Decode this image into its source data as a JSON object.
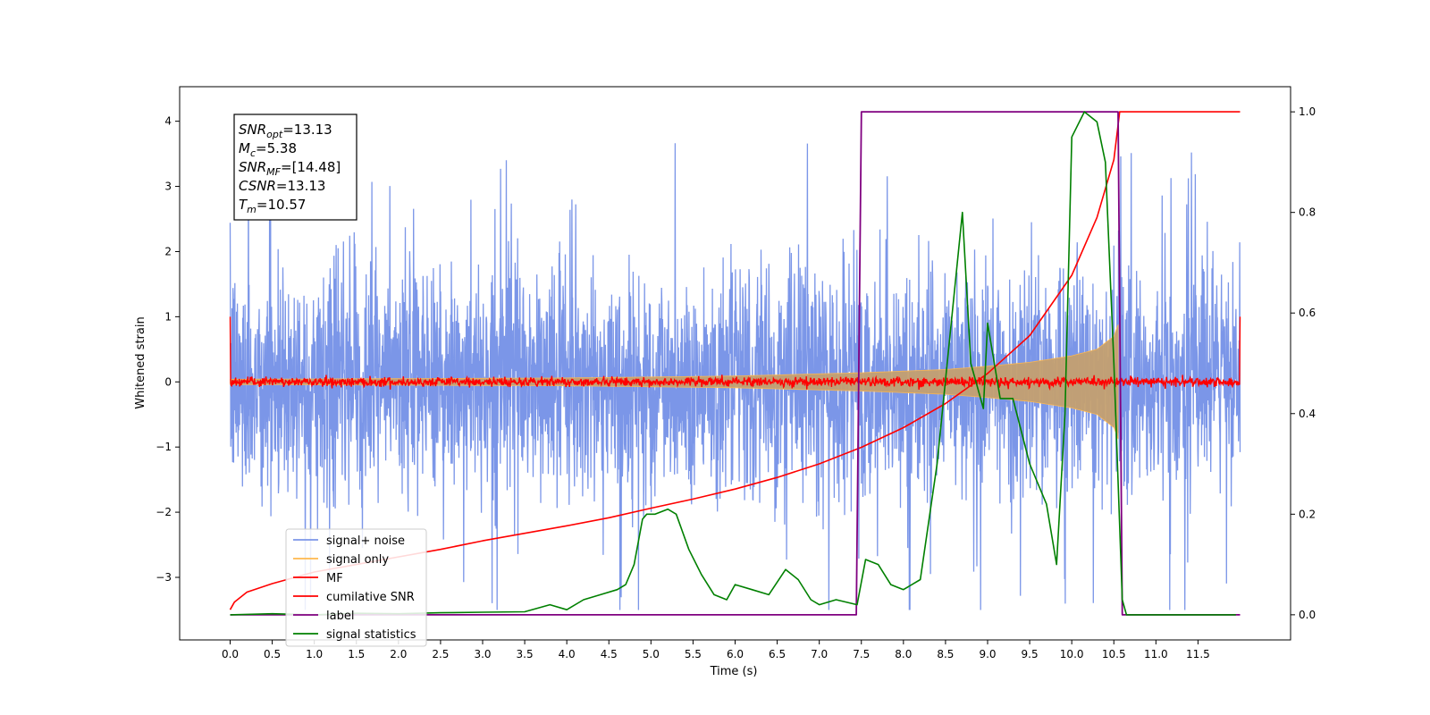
{
  "chart_data": {
    "type": "line",
    "xlabel": "Time (s)",
    "ylabel": "Whitened strain",
    "ylabel_right": "",
    "xlim": [
      -0.6,
      12.6
    ],
    "ylim": [
      -3.96,
      4.53
    ],
    "ylim_right": [
      -0.05,
      1.05
    ],
    "x_ticks": [
      0.0,
      0.5,
      1.0,
      1.5,
      2.0,
      2.5,
      3.0,
      3.5,
      4.0,
      4.5,
      5.0,
      5.5,
      6.0,
      6.5,
      7.0,
      7.5,
      8.0,
      8.5,
      9.0,
      9.5,
      10.0,
      10.5,
      11.0,
      11.5
    ],
    "x_tick_labels": [
      "0.0",
      "0.5",
      "1.0",
      "1.5",
      "2.0",
      "2.5",
      "3.0",
      "3.5",
      "4.0",
      "4.5",
      "5.0",
      "5.5",
      "6.0",
      "6.5",
      "7.0",
      "7.5",
      "8.0",
      "8.5",
      "9.0",
      "9.5",
      "10.0",
      "10.5",
      "11.0",
      "11.5"
    ],
    "y_ticks": [
      -3,
      -2,
      -1,
      0,
      1,
      2,
      3,
      4
    ],
    "y_tick_labels": [
      "−3",
      "−2",
      "−1",
      "0",
      "1",
      "2",
      "3",
      "4"
    ],
    "y_right_ticks": [
      0.0,
      0.2,
      0.4,
      0.6,
      0.8,
      1.0
    ],
    "y_right_tick_labels": [
      "0.0",
      "0.2",
      "0.4",
      "0.6",
      "0.8",
      "1.0"
    ],
    "grid": false,
    "legend_position": "lower-left",
    "annotation": [
      {
        "base": "SNR",
        "sub": "opt",
        "rest": "=13.13"
      },
      {
        "base": "M",
        "sub": "c",
        "rest": "=5.38"
      },
      {
        "base": "SNR",
        "sub": "MF",
        "rest": "=[14.48]"
      },
      {
        "base": "CSNR",
        "sub": "",
        "rest": "=13.13"
      },
      {
        "base": "T",
        "sub": "m",
        "rest": "=10.57"
      }
    ],
    "series": [
      {
        "name": "signal+ noise",
        "axis": "left",
        "color": "#7b96e8",
        "kind": "noise-band",
        "x_range": [
          0.0,
          12.0
        ],
        "typical_amplitude": 1.6,
        "peak_max": 4.0,
        "peak_min": -3.5
      },
      {
        "name": "signal only",
        "axis": "left",
        "color": "#ffb84d",
        "kind": "chirp-envelope",
        "x": [
          0.0,
          4.0,
          6.0,
          7.5,
          8.5,
          9.0,
          9.5,
          10.0,
          10.3,
          10.5,
          10.57,
          10.6
        ],
        "y": [
          0.04,
          0.06,
          0.09,
          0.14,
          0.19,
          0.24,
          0.3,
          0.4,
          0.5,
          0.7,
          0.95,
          0.0
        ]
      },
      {
        "name": "MF",
        "axis": "left",
        "color": "#ff0000",
        "kind": "noise-band",
        "x_range": [
          0.0,
          12.0
        ],
        "typical_amplitude": 0.08,
        "peak_max": 0.2,
        "peak_min": -0.12,
        "edge_value": 1.0
      },
      {
        "name": "cumilative SNR",
        "axis": "right",
        "color": "#ff0000",
        "x": [
          0.0,
          0.05,
          0.2,
          0.5,
          1.0,
          1.5,
          2.0,
          2.5,
          3.0,
          3.5,
          4.0,
          4.5,
          5.0,
          5.5,
          6.0,
          6.5,
          7.0,
          7.5,
          8.0,
          8.5,
          9.0,
          9.5,
          10.0,
          10.3,
          10.5,
          10.57,
          11.0,
          11.5,
          12.0
        ],
        "y": [
          0.01,
          0.025,
          0.045,
          0.062,
          0.085,
          0.1,
          0.115,
          0.13,
          0.147,
          0.162,
          0.177,
          0.193,
          0.212,
          0.23,
          0.25,
          0.273,
          0.3,
          0.333,
          0.372,
          0.42,
          0.48,
          0.555,
          0.675,
          0.79,
          0.905,
          1.0,
          1.0,
          1.0,
          1.0
        ]
      },
      {
        "name": "label",
        "axis": "right",
        "color": "#800080",
        "x": [
          0.0,
          7.44,
          7.5,
          10.55,
          10.6,
          12.0
        ],
        "y": [
          0.0,
          0.0,
          1.0,
          1.0,
          0.0,
          0.0
        ]
      },
      {
        "name": "signal statistics",
        "axis": "right",
        "color": "#008000",
        "x": [
          0.0,
          0.5,
          1.0,
          1.5,
          2.0,
          2.5,
          3.0,
          3.5,
          3.8,
          4.0,
          4.2,
          4.4,
          4.6,
          4.7,
          4.8,
          4.9,
          4.95,
          5.05,
          5.2,
          5.3,
          5.45,
          5.6,
          5.75,
          5.9,
          6.0,
          6.2,
          6.4,
          6.6,
          6.75,
          6.9,
          7.0,
          7.2,
          7.45,
          7.55,
          7.7,
          7.85,
          8.0,
          8.2,
          8.4,
          8.55,
          8.7,
          8.8,
          8.95,
          9.0,
          9.15,
          9.3,
          9.5,
          9.7,
          9.82,
          9.92,
          10.0,
          10.15,
          10.3,
          10.4,
          10.5,
          10.6,
          10.65,
          10.7,
          11.0,
          11.5,
          11.95
        ],
        "y": [
          0.0,
          0.002,
          0.0,
          0.003,
          0.002,
          0.004,
          0.005,
          0.006,
          0.02,
          0.01,
          0.03,
          0.04,
          0.05,
          0.06,
          0.1,
          0.19,
          0.2,
          0.2,
          0.21,
          0.2,
          0.13,
          0.08,
          0.04,
          0.03,
          0.06,
          0.05,
          0.04,
          0.09,
          0.07,
          0.03,
          0.02,
          0.03,
          0.02,
          0.11,
          0.1,
          0.06,
          0.05,
          0.07,
          0.3,
          0.55,
          0.8,
          0.5,
          0.41,
          0.58,
          0.43,
          0.43,
          0.3,
          0.22,
          0.1,
          0.4,
          0.95,
          1.0,
          0.98,
          0.9,
          0.5,
          0.03,
          0.0,
          0.0,
          0.0,
          0.0,
          0.0
        ]
      }
    ]
  }
}
